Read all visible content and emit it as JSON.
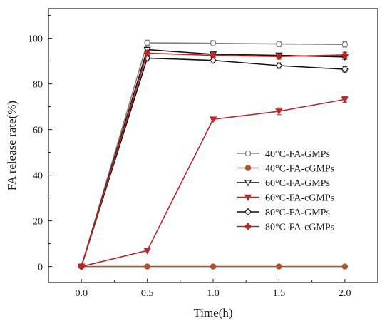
{
  "chart_data": {
    "type": "line",
    "xlabel": "Time(h)",
    "ylabel": "FA release rate(%)",
    "x": [
      0.0,
      0.5,
      1.0,
      1.5,
      2.0
    ],
    "xlim": [
      -0.25,
      2.25
    ],
    "ylim": [
      -7,
      113
    ],
    "x_ticks": [
      "0.0",
      "0.5",
      "1.0",
      "1.5",
      "2.0"
    ],
    "x_tick_values": [
      0.0,
      0.5,
      1.0,
      1.5,
      2.0
    ],
    "y_ticks": [
      "0",
      "20",
      "40",
      "60",
      "80",
      "100"
    ],
    "y_tick_values": [
      0,
      20,
      40,
      60,
      80,
      100
    ],
    "grid": false,
    "legend_position": "center-right",
    "series": [
      {
        "name": "40°C-FA-GMPs",
        "values": [
          0,
          98.0,
          97.8,
          97.5,
          97.3
        ],
        "errors": [
          0,
          1.2,
          1.2,
          1.2,
          1.2
        ],
        "color": "#7f7f7f",
        "marker": "circle-open"
      },
      {
        "name": "40°C-FA-cGMPs",
        "values": [
          0,
          0,
          0,
          0,
          0
        ],
        "errors": [
          0,
          0,
          0,
          0,
          0
        ],
        "color": "#b5502c",
        "marker": "circle-filled"
      },
      {
        "name": "60°C-FA-GMPs",
        "values": [
          0,
          95.0,
          93.0,
          92.5,
          91.8
        ],
        "errors": [
          0,
          1.0,
          1.0,
          1.0,
          1.0
        ],
        "color": "#111111",
        "marker": "triangle-down-open"
      },
      {
        "name": "60°C-FA-cGMPs",
        "values": [
          0,
          7.0,
          64.5,
          68.0,
          73.2
        ],
        "errors": [
          0,
          1.0,
          0.8,
          1.5,
          1.2
        ],
        "color": "#b5282c",
        "marker": "triangle-down-filled"
      },
      {
        "name": "80°C-FA-GMPs",
        "values": [
          0,
          91.3,
          90.3,
          88.0,
          86.4
        ],
        "errors": [
          0,
          1.2,
          1.2,
          1.2,
          1.2
        ],
        "color": "#111111",
        "marker": "diamond-open"
      },
      {
        "name": "80°C-FA-cGMPs",
        "values": [
          0,
          93.5,
          92.5,
          92.0,
          92.7
        ],
        "errors": [
          0,
          1.2,
          1.2,
          1.2,
          1.2
        ],
        "color": "#c0231f",
        "marker": "diamond-filled"
      }
    ]
  }
}
